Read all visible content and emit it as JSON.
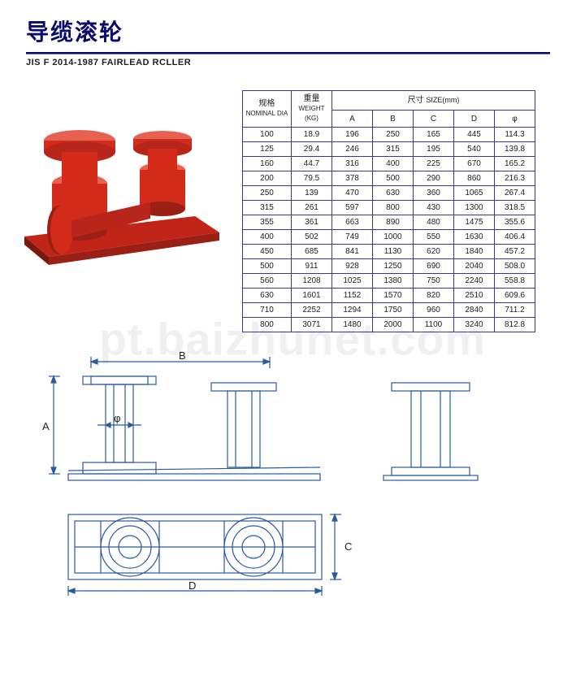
{
  "header": {
    "title_cn": "导缆滚轮",
    "title_en": "JIS F 2014-1987 FAIRLEAD RCLLER"
  },
  "table": {
    "header_nominal_cn": "规格",
    "header_nominal_en": "NOMINAL DIA",
    "header_weight_cn": "重量",
    "header_weight_en": "WEIGHT",
    "header_weight_unit": "(KG)",
    "header_size_cn": "尺寸",
    "header_size_en": "SIZE(mm)",
    "cols": [
      "A",
      "B",
      "C",
      "D",
      "φ"
    ],
    "rows": [
      {
        "nom": "100",
        "wt": "18.9",
        "A": "196",
        "B": "250",
        "C": "165",
        "D": "445",
        "phi": "114.3"
      },
      {
        "nom": "125",
        "wt": "29.4",
        "A": "246",
        "B": "315",
        "C": "195",
        "D": "540",
        "phi": "139.8"
      },
      {
        "nom": "160",
        "wt": "44.7",
        "A": "316",
        "B": "400",
        "C": "225",
        "D": "670",
        "phi": "165.2"
      },
      {
        "nom": "200",
        "wt": "79.5",
        "A": "378",
        "B": "500",
        "C": "290",
        "D": "860",
        "phi": "216.3"
      },
      {
        "nom": "250",
        "wt": "139",
        "A": "470",
        "B": "630",
        "C": "360",
        "D": "1065",
        "phi": "267.4"
      },
      {
        "nom": "315",
        "wt": "261",
        "A": "597",
        "B": "800",
        "C": "430",
        "D": "1300",
        "phi": "318.5"
      },
      {
        "nom": "355",
        "wt": "361",
        "A": "663",
        "B": "890",
        "C": "480",
        "D": "1475",
        "phi": "355.6"
      },
      {
        "nom": "400",
        "wt": "502",
        "A": "749",
        "B": "1000",
        "C": "550",
        "D": "1630",
        "phi": "406.4"
      },
      {
        "nom": "450",
        "wt": "685",
        "A": "841",
        "B": "1130",
        "C": "620",
        "D": "1840",
        "phi": "457.2"
      },
      {
        "nom": "500",
        "wt": "911",
        "A": "928",
        "B": "1250",
        "C": "690",
        "D": "2040",
        "phi": "508.0"
      },
      {
        "nom": "560",
        "wt": "1208",
        "A": "1025",
        "B": "1380",
        "C": "750",
        "D": "2240",
        "phi": "558.8"
      },
      {
        "nom": "630",
        "wt": "1601",
        "A": "1152",
        "B": "1570",
        "C": "820",
        "D": "2510",
        "phi": "609.6"
      },
      {
        "nom": "710",
        "wt": "2252",
        "A": "1294",
        "B": "1750",
        "C": "960",
        "D": "2840",
        "phi": "711.2"
      },
      {
        "nom": "800",
        "wt": "3071",
        "A": "1480",
        "B": "2000",
        "C": "1100",
        "D": "3240",
        "phi": "812.8"
      }
    ]
  },
  "product_image": {
    "body_color": "#d22b1a",
    "highlight_color": "#e8604f",
    "shadow_color": "#7a1810",
    "background": "#ffffff"
  },
  "diagram": {
    "stroke": "#2a5aa0",
    "stroke_width": 1.2,
    "labels": {
      "A": "A",
      "B": "B",
      "C": "C",
      "D": "D",
      "phi": "φ"
    },
    "label_fontsize": 13,
    "label_color": "#222"
  },
  "watermark": "pt.baizhunet.com"
}
